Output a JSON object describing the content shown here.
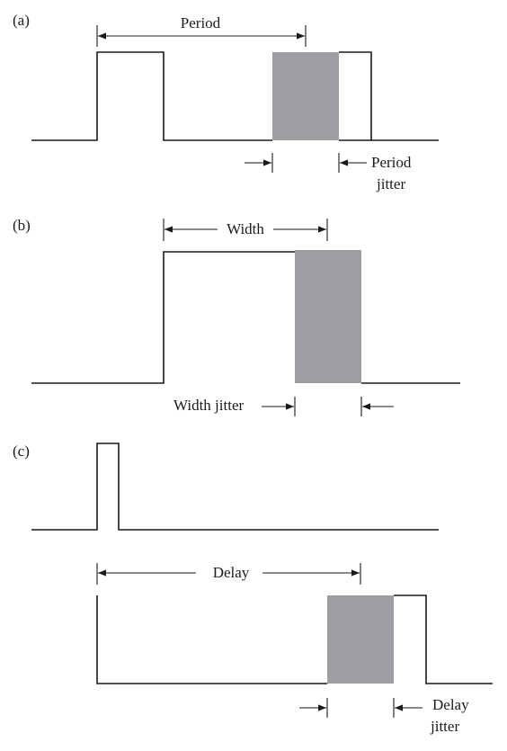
{
  "panels": {
    "a": {
      "tag": "(a)",
      "dimension_label": "Period",
      "jitter_label_line1": "Period",
      "jitter_label_line2": "jitter"
    },
    "b": {
      "tag": "(b)",
      "dimension_label": "Width",
      "jitter_label": "Width jitter"
    },
    "c": {
      "tag": "(c)",
      "dimension_label": "Delay",
      "jitter_label_line1": "Delay",
      "jitter_label_line2": "jitter"
    }
  },
  "colors": {
    "waveform": "#1a1a1a",
    "jitter_band": "#9d9ea2",
    "background": "#ffffff"
  }
}
